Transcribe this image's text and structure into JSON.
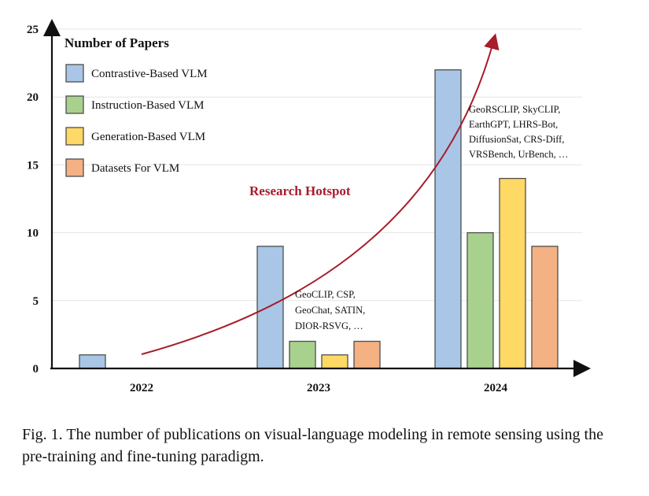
{
  "chart_data": {
    "type": "bar",
    "title": "Number of Papers",
    "categories": [
      "2022",
      "2023",
      "2024"
    ],
    "ylim": [
      0,
      25
    ],
    "yticks": [
      0,
      5,
      10,
      15,
      20,
      25
    ],
    "grid": true,
    "legend_position": "top-left",
    "series": [
      {
        "name": "Contrastive-Based VLM",
        "color": "#a9c6e6",
        "values": [
          1,
          9,
          22
        ]
      },
      {
        "name": "Instruction-Based VLM",
        "color": "#a9d18e",
        "values": [
          0,
          2,
          10
        ]
      },
      {
        "name": "Generation-Based VLM",
        "color": "#ffd966",
        "values": [
          0,
          1,
          14
        ]
      },
      {
        "name": "Datasets For VLM",
        "color": "#f4b183",
        "values": [
          0,
          2,
          9
        ]
      }
    ],
    "annotations": {
      "hotspot": "Research Hotspot",
      "hotspot_color": "#a81c2c",
      "notes_2023": [
        "GeoCLIP, CSP,",
        "GeoChat, SATIN,",
        "DIOR-RSVG, …"
      ],
      "notes_2024": [
        "GeoRSCLIP, SkyCLIP,",
        "EarthGPT, LHRS-Bot,",
        "DiffusionSat, CRS-Diff,",
        "VRSBench, UrBench, …"
      ]
    }
  },
  "caption": "Fig. 1.  The number of publications on visual-language modeling in remote sensing using the pre-training and fine-tuning paradigm."
}
